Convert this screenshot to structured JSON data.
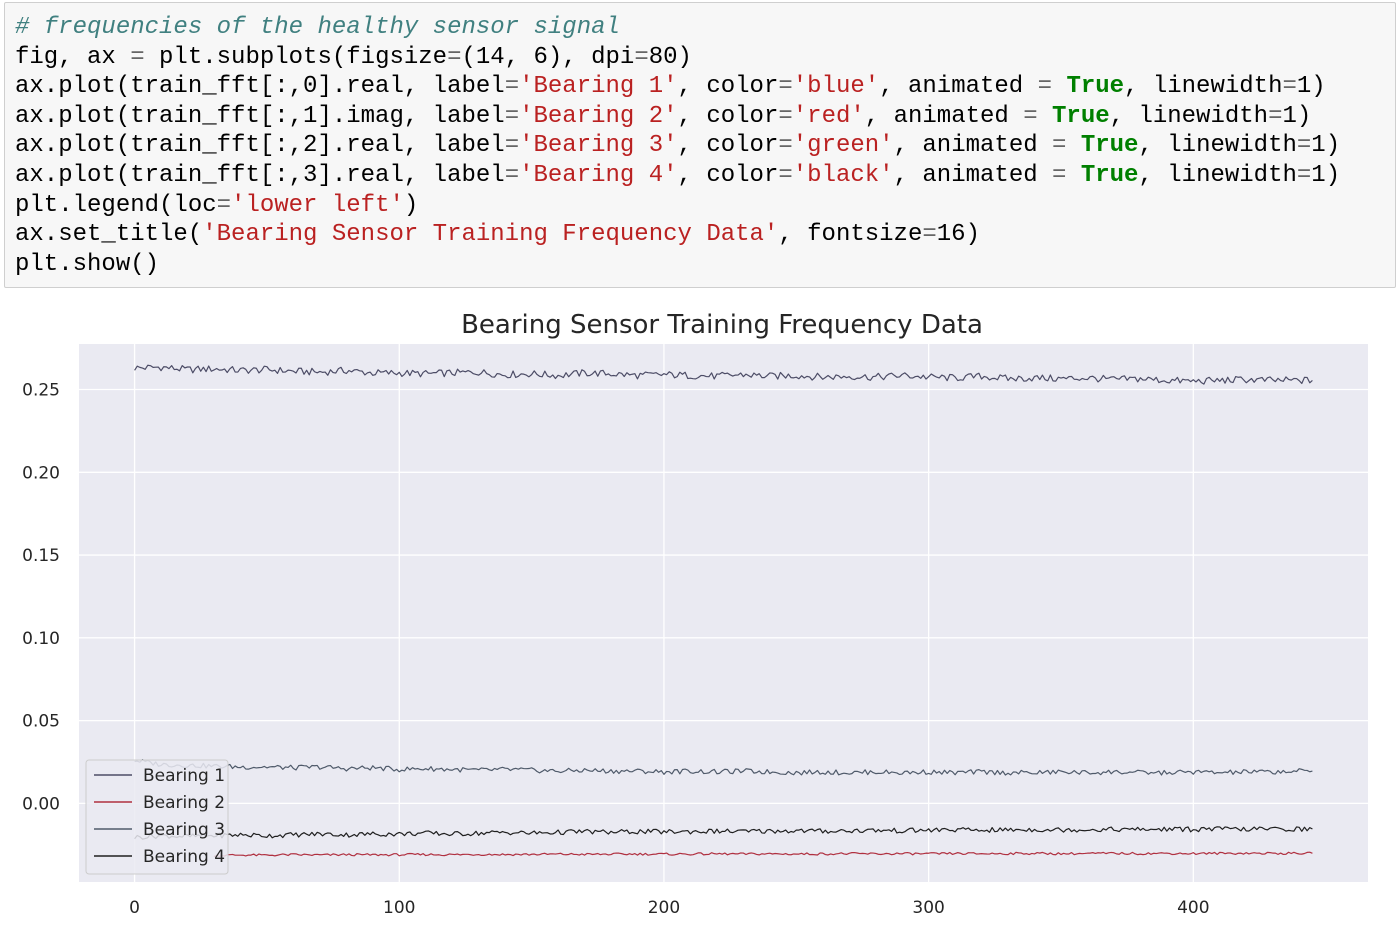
{
  "code_cell": {
    "lines": [
      [
        {
          "t": "# frequencies of the healthy sensor signal",
          "c": "comment"
        }
      ],
      [
        {
          "t": "fig, ax ",
          "c": "plain"
        },
        {
          "t": "=",
          "c": "op"
        },
        {
          "t": " plt.subplots(figsize",
          "c": "plain"
        },
        {
          "t": "=",
          "c": "op"
        },
        {
          "t": "(14, 6), dpi",
          "c": "plain"
        },
        {
          "t": "=",
          "c": "op"
        },
        {
          "t": "80)",
          "c": "plain"
        }
      ],
      [
        {
          "t": "ax.plot(train_fft[:,0].real, label",
          "c": "plain"
        },
        {
          "t": "=",
          "c": "op"
        },
        {
          "t": "'Bearing 1'",
          "c": "string"
        },
        {
          "t": ", color",
          "c": "plain"
        },
        {
          "t": "=",
          "c": "op"
        },
        {
          "t": "'blue'",
          "c": "string"
        },
        {
          "t": ", animated ",
          "c": "plain"
        },
        {
          "t": "=",
          "c": "op"
        },
        {
          "t": " ",
          "c": "plain"
        },
        {
          "t": "True",
          "c": "kw"
        },
        {
          "t": ", linewidth",
          "c": "plain"
        },
        {
          "t": "=",
          "c": "op"
        },
        {
          "t": "1)",
          "c": "plain"
        }
      ],
      [
        {
          "t": "ax.plot(train_fft[:,1].imag, label",
          "c": "plain"
        },
        {
          "t": "=",
          "c": "op"
        },
        {
          "t": "'Bearing 2'",
          "c": "string"
        },
        {
          "t": ", color",
          "c": "plain"
        },
        {
          "t": "=",
          "c": "op"
        },
        {
          "t": "'red'",
          "c": "string"
        },
        {
          "t": ", animated ",
          "c": "plain"
        },
        {
          "t": "=",
          "c": "op"
        },
        {
          "t": " ",
          "c": "plain"
        },
        {
          "t": "True",
          "c": "kw"
        },
        {
          "t": ", linewidth",
          "c": "plain"
        },
        {
          "t": "=",
          "c": "op"
        },
        {
          "t": "1)",
          "c": "plain"
        }
      ],
      [
        {
          "t": "ax.plot(train_fft[:,2].real, label",
          "c": "plain"
        },
        {
          "t": "=",
          "c": "op"
        },
        {
          "t": "'Bearing 3'",
          "c": "string"
        },
        {
          "t": ", color",
          "c": "plain"
        },
        {
          "t": "=",
          "c": "op"
        },
        {
          "t": "'green'",
          "c": "string"
        },
        {
          "t": ", animated ",
          "c": "plain"
        },
        {
          "t": "=",
          "c": "op"
        },
        {
          "t": " ",
          "c": "plain"
        },
        {
          "t": "True",
          "c": "kw"
        },
        {
          "t": ", linewidth",
          "c": "plain"
        },
        {
          "t": "=",
          "c": "op"
        },
        {
          "t": "1)",
          "c": "plain"
        }
      ],
      [
        {
          "t": "ax.plot(train_fft[:,3].real, label",
          "c": "plain"
        },
        {
          "t": "=",
          "c": "op"
        },
        {
          "t": "'Bearing 4'",
          "c": "string"
        },
        {
          "t": ", color",
          "c": "plain"
        },
        {
          "t": "=",
          "c": "op"
        },
        {
          "t": "'black'",
          "c": "string"
        },
        {
          "t": ", animated ",
          "c": "plain"
        },
        {
          "t": "=",
          "c": "op"
        },
        {
          "t": " ",
          "c": "plain"
        },
        {
          "t": "True",
          "c": "kw"
        },
        {
          "t": ", linewidth",
          "c": "plain"
        },
        {
          "t": "=",
          "c": "op"
        },
        {
          "t": "1)",
          "c": "plain"
        }
      ],
      [
        {
          "t": "plt.legend(loc",
          "c": "plain"
        },
        {
          "t": "=",
          "c": "op"
        },
        {
          "t": "'lower left'",
          "c": "string"
        },
        {
          "t": ")",
          "c": "plain"
        }
      ],
      [
        {
          "t": "ax.set_title(",
          "c": "plain"
        },
        {
          "t": "'Bearing Sensor Training Frequency Data'",
          "c": "string"
        },
        {
          "t": ", fontsize",
          "c": "plain"
        },
        {
          "t": "=",
          "c": "op"
        },
        {
          "t": "16)",
          "c": "plain"
        }
      ],
      [
        {
          "t": "plt.show()",
          "c": "plain"
        }
      ]
    ]
  },
  "colors": {
    "plot_background": "#eaeaf2",
    "grid": "#ffffff",
    "comment": "#408080",
    "string": "#ba2121",
    "keyword": "#008000"
  },
  "chart_data": {
    "type": "line",
    "title": "Bearing Sensor Training Frequency Data",
    "xlabel": "",
    "ylabel": "",
    "xlim": [
      -21,
      466
    ],
    "ylim": [
      -0.0475,
      0.2775
    ],
    "xticks": [
      0,
      100,
      200,
      300,
      400
    ],
    "yticks": [
      0.0,
      0.05,
      0.1,
      0.15,
      0.2,
      0.25
    ],
    "ytick_labels": [
      "0.00",
      "0.05",
      "0.10",
      "0.15",
      "0.20",
      "0.25"
    ],
    "grid": true,
    "legend_position": "lower left",
    "series": [
      {
        "name": "Bearing 1",
        "color": "#4c4c66",
        "x": [
          0,
          10,
          20,
          30,
          40,
          50,
          60,
          70,
          80,
          90,
          100,
          110,
          120,
          130,
          140,
          150,
          160,
          170,
          180,
          190,
          200,
          210,
          220,
          230,
          240,
          250,
          260,
          270,
          280,
          290,
          300,
          310,
          320,
          330,
          340,
          350,
          360,
          370,
          380,
          390,
          400,
          410,
          420,
          430,
          440,
          445
        ],
        "y": [
          0.263,
          0.2635,
          0.262,
          0.2625,
          0.2615,
          0.262,
          0.261,
          0.2605,
          0.2615,
          0.26,
          0.26,
          0.2595,
          0.26,
          0.2605,
          0.259,
          0.2595,
          0.2585,
          0.26,
          0.2595,
          0.2585,
          0.259,
          0.2585,
          0.258,
          0.259,
          0.258,
          0.2585,
          0.2575,
          0.258,
          0.2575,
          0.2585,
          0.2575,
          0.257,
          0.258,
          0.2565,
          0.257,
          0.2565,
          0.257,
          0.256,
          0.2565,
          0.2555,
          0.255,
          0.2555,
          0.256,
          0.2555,
          0.2555,
          0.2555
        ]
      },
      {
        "name": "Bearing 2",
        "color": "#b03040",
        "x": [
          30,
          40,
          50,
          60,
          70,
          80,
          90,
          100,
          110,
          120,
          130,
          140,
          150,
          160,
          170,
          180,
          190,
          200,
          210,
          220,
          230,
          240,
          250,
          260,
          270,
          280,
          290,
          300,
          310,
          320,
          330,
          340,
          350,
          360,
          370,
          380,
          390,
          400,
          410,
          420,
          430,
          440,
          445
        ],
        "y": [
          -0.0315,
          -0.0312,
          -0.0313,
          -0.031,
          -0.0312,
          -0.031,
          -0.0311,
          -0.031,
          -0.0309,
          -0.031,
          -0.0308,
          -0.0309,
          -0.0308,
          -0.0307,
          -0.0308,
          -0.0307,
          -0.0306,
          -0.0307,
          -0.0306,
          -0.0305,
          -0.0306,
          -0.0305,
          -0.0306,
          -0.0305,
          -0.0304,
          -0.0305,
          -0.0304,
          -0.0305,
          -0.0303,
          -0.0304,
          -0.0303,
          -0.0302,
          -0.0304,
          -0.0303,
          -0.0302,
          -0.0303,
          -0.0302,
          -0.0303,
          -0.0302,
          -0.0301,
          -0.0302,
          -0.0302,
          -0.0302
        ]
      },
      {
        "name": "Bearing 3",
        "color": "#4f5a6a",
        "x": [
          0,
          10,
          20,
          30,
          40,
          50,
          60,
          70,
          80,
          90,
          100,
          110,
          120,
          130,
          140,
          150,
          160,
          170,
          180,
          190,
          200,
          210,
          220,
          230,
          240,
          250,
          260,
          270,
          280,
          290,
          300,
          310,
          320,
          330,
          340,
          350,
          360,
          370,
          380,
          390,
          400,
          410,
          420,
          430,
          440,
          445
        ],
        "y": [
          0.026,
          0.0235,
          0.023,
          0.0225,
          0.022,
          0.022,
          0.0215,
          0.022,
          0.021,
          0.0215,
          0.0205,
          0.021,
          0.0205,
          0.02,
          0.0205,
          0.02,
          0.0195,
          0.02,
          0.0195,
          0.0195,
          0.019,
          0.0195,
          0.019,
          0.0195,
          0.019,
          0.0185,
          0.019,
          0.0185,
          0.019,
          0.0185,
          0.019,
          0.0185,
          0.019,
          0.0185,
          0.0185,
          0.019,
          0.0185,
          0.019,
          0.0185,
          0.0185,
          0.019,
          0.0185,
          0.019,
          0.019,
          0.0195,
          0.0195
        ]
      },
      {
        "name": "Bearing 4",
        "color": "#1f1f1f",
        "x": [
          0,
          10,
          20,
          30,
          40,
          50,
          60,
          70,
          80,
          90,
          100,
          110,
          120,
          130,
          140,
          150,
          160,
          170,
          180,
          190,
          200,
          210,
          220,
          230,
          240,
          250,
          260,
          270,
          280,
          290,
          300,
          310,
          320,
          330,
          340,
          350,
          360,
          370,
          380,
          390,
          400,
          410,
          420,
          430,
          440,
          445
        ],
        "y": [
          -0.0205,
          -0.0195,
          -0.02,
          -0.0195,
          -0.019,
          -0.0195,
          -0.019,
          -0.0185,
          -0.019,
          -0.0185,
          -0.0185,
          -0.018,
          -0.0185,
          -0.018,
          -0.0175,
          -0.018,
          -0.0175,
          -0.017,
          -0.0175,
          -0.017,
          -0.0172,
          -0.017,
          -0.0168,
          -0.017,
          -0.0167,
          -0.0165,
          -0.0168,
          -0.0165,
          -0.0163,
          -0.0165,
          -0.0162,
          -0.016,
          -0.0162,
          -0.016,
          -0.0158,
          -0.016,
          -0.0158,
          -0.0157,
          -0.0158,
          -0.0156,
          -0.0157,
          -0.0155,
          -0.0156,
          -0.0155,
          -0.0155,
          -0.0155
        ]
      }
    ]
  }
}
